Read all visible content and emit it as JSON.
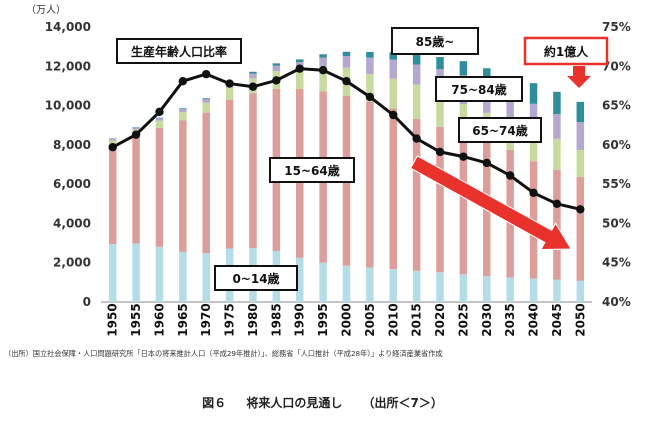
{
  "chart_data": {
    "type": "bar",
    "stacked": true,
    "unit_left": "（万人）",
    "categories": [
      "1950",
      "1955",
      "1960",
      "1965",
      "1970",
      "1975",
      "1980",
      "1985",
      "1990",
      "1995",
      "2000",
      "2005",
      "2010",
      "2015",
      "2020",
      "2025",
      "2030",
      "2035",
      "2040",
      "2045",
      "2050"
    ],
    "series": [
      {
        "name": "0~14歳",
        "color": "#b4dde8",
        "values": [
          2950,
          2980,
          2810,
          2550,
          2480,
          2720,
          2750,
          2600,
          2250,
          2000,
          1850,
          1760,
          1680,
          1590,
          1510,
          1410,
          1320,
          1250,
          1190,
          1140,
          1080
        ]
      },
      {
        "name": "15~64歳",
        "color": "#dc9e9b",
        "values": [
          4960,
          5470,
          6050,
          6690,
          7160,
          7580,
          7880,
          8250,
          8590,
          8720,
          8640,
          8440,
          8170,
          7730,
          7410,
          7170,
          6880,
          6490,
          5980,
          5580,
          5280
        ]
      },
      {
        "name": "65~74歳",
        "color": "#c8daa0",
        "values": [
          310,
          330,
          370,
          430,
          510,
          620,
          760,
          910,
          1010,
          1250,
          1440,
          1410,
          1520,
          1750,
          1750,
          1500,
          1430,
          1500,
          1680,
          1590,
          1380
        ]
      },
      {
        "name": "75~84歳",
        "color": "#b5a8cf",
        "values": [
          90,
          100,
          120,
          150,
          170,
          200,
          240,
          280,
          370,
          470,
          590,
          830,
          970,
          1020,
          1180,
          1460,
          1500,
          1230,
          1240,
          1260,
          1420
        ]
      },
      {
        "name": "85歳~",
        "color": "#2f8d9c",
        "values": [
          20,
          20,
          30,
          40,
          50,
          60,
          90,
          110,
          130,
          170,
          220,
          290,
          380,
          500,
          620,
          720,
          770,
          1000,
          1050,
          1130,
          1030
        ]
      }
    ],
    "line": {
      "name": "生産年齢人口比率",
      "values": [
        59.7,
        61.3,
        64.2,
        68.1,
        69.0,
        67.8,
        67.4,
        68.2,
        69.7,
        69.5,
        68.1,
        66.1,
        63.8,
        60.8,
        59.1,
        58.5,
        57.7,
        56.1,
        53.9,
        52.5,
        51.8
      ]
    },
    "ylim_left": [
      0,
      14000
    ],
    "ylim_right": [
      40,
      75
    ],
    "yticks_left": [
      "0",
      "2,000",
      "4,000",
      "6,000",
      "8,000",
      "10,000",
      "12,000",
      "14,000"
    ],
    "yticks_right": [
      "40%",
      "45%",
      "50%",
      "55%",
      "60%",
      "65%",
      "70%",
      "75%"
    ],
    "grid": false,
    "annotations": {
      "ratio_label": "生産年齢人口比率",
      "age85": "85歳~",
      "age75": "75~84歳",
      "age65": "65~74歳",
      "age15": "15~64歳",
      "age0": "0~14歳",
      "callout": "約1億人"
    },
    "source_note": "（出所）国立社会保障・人口問題研究所「日本の将来推計人口（平成29年推計）」、総務省「人口推計（平成28年）」より経済産業省作成",
    "caption_number": "図６",
    "caption_title": "将来人口の見通し",
    "caption_source": "（出所＜7＞）"
  },
  "colors": {
    "axis": "#888888",
    "line": "#111111",
    "trend_arrow": "#e8322b",
    "callout_border": "#e8322b"
  }
}
